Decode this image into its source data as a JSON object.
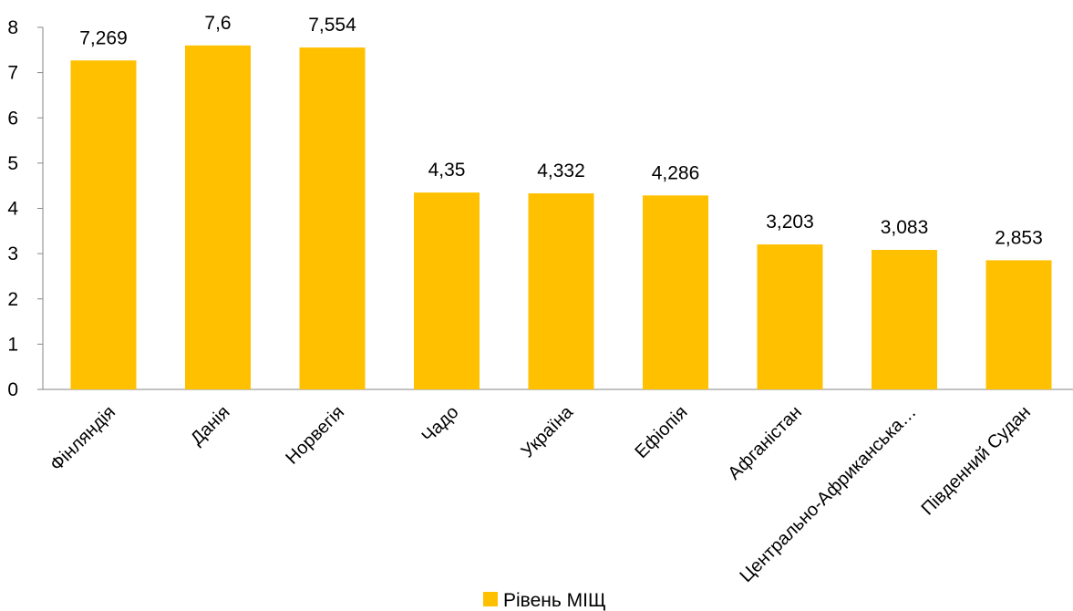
{
  "chart_data": {
    "type": "bar",
    "categories": [
      "Фінляндія",
      "Данія",
      "Норвегія",
      "Чадо",
      "Україна",
      "Ефіопія",
      "Афганістан",
      "Центрально-Африканська…",
      "Південний Судан"
    ],
    "series": [
      {
        "name": "Рівень МІЩ",
        "values": [
          7.269,
          7.6,
          7.554,
          4.35,
          4.332,
          4.286,
          3.203,
          3.083,
          2.853
        ],
        "value_labels": [
          "7,269",
          "7,6",
          "7,554",
          "4,35",
          "4,332",
          "4,286",
          "3,203",
          "3,083",
          "2,853"
        ],
        "color": "#FFC000"
      }
    ],
    "yticks": [
      "0",
      "1",
      "2",
      "3",
      "4",
      "5",
      "6",
      "7",
      "8"
    ],
    "ylim": [
      0,
      8
    ],
    "grid": false,
    "legend": {
      "position": "bottom",
      "label": "Рівень МІЩ"
    },
    "title": "",
    "xlabel": "",
    "ylabel": ""
  }
}
